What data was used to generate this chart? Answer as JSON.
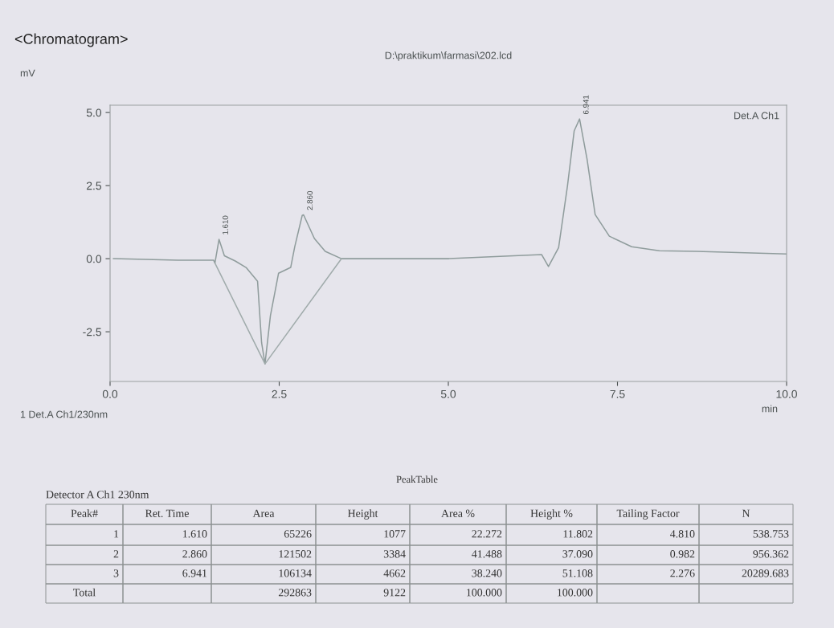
{
  "chart_data": {
    "type": "line",
    "title": "<Chromatogram>",
    "subtitle": "D:\\praktikum\\farmasi\\202.lcd",
    "xlabel": "min",
    "xlim": [
      0,
      10
    ],
    "ylim": [
      -4.2,
      5.25
    ],
    "xticks": [
      {
        "value": 0,
        "label": "0.0"
      },
      {
        "value": 2.5,
        "label": "2.5"
      },
      {
        "value": 5,
        "label": "5.0"
      },
      {
        "value": 7.5,
        "label": "7.5"
      },
      {
        "value": 10,
        "label": "10.0"
      }
    ],
    "yticks": [
      {
        "value": -2.5,
        "label": "-2.5"
      },
      {
        "value": 0,
        "label": "0.0"
      },
      {
        "value": 2.5,
        "label": "2.5"
      },
      {
        "value": 5,
        "label": "5.0"
      }
    ],
    "grid": false,
    "series": [
      {
        "color": "#8f9c9c",
        "x": [
          0.05,
          1.0,
          1.53,
          1.55,
          1.61,
          1.69,
          1.85,
          2.01,
          2.18,
          2.24,
          2.29,
          2.37,
          2.49,
          2.67,
          2.73,
          2.84,
          2.86,
          3.02,
          3.18,
          3.42,
          4.39,
          5.01,
          6.38,
          6.48,
          6.63,
          6.76,
          6.86,
          6.94,
          7.05,
          7.17,
          7.38,
          7.71,
          8.12,
          8.67,
          10.0
        ],
        "values": [
          0.0,
          -0.05,
          -0.05,
          -0.15,
          0.66,
          0.1,
          -0.08,
          -0.3,
          -0.77,
          -2.88,
          -3.6,
          -1.95,
          -0.5,
          -0.3,
          0.41,
          1.48,
          1.5,
          0.69,
          0.25,
          0.0,
          0.0,
          0.0,
          0.14,
          -0.27,
          0.38,
          2.47,
          4.37,
          4.78,
          3.41,
          1.51,
          0.77,
          0.41,
          0.27,
          0.25,
          0.16
        ]
      },
      {
        "color": "#a0abab",
        "x": [
          1.55,
          2.29,
          3.42
        ],
        "values": [
          -0.15,
          -3.6,
          0.0
        ]
      }
    ],
    "annotations": [
      "mV",
      "Det.A Ch1",
      {
        "text": "1.610",
        "x": 1.61,
        "y": 0.66
      },
      {
        "text": "2.860",
        "x": 2.86,
        "y": 1.5
      },
      {
        "text": "6.941",
        "x": 6.94,
        "y": 4.78
      },
      "1 Det.A Ch1/230nm",
      "PeakTable",
      "Detector A Ch1 230nm",
      "Peak#",
      "Ret. Time",
      "Area",
      "Height",
      "Area %",
      "Height %",
      "Tailing Factor",
      "N",
      "1",
      "1.610",
      "65226",
      "1077",
      "22.272",
      "11.802",
      "4.810",
      "538.753",
      "2",
      "2.860",
      "121502",
      "3384",
      "41.488",
      "37.090",
      "0.982",
      "956.362",
      "3",
      "6.941",
      "106134",
      "4662",
      "38.240",
      "51.108",
      "2.276",
      "20289.683",
      "Total",
      "292863",
      "9122",
      "100.000",
      "100.000"
    ]
  }
}
